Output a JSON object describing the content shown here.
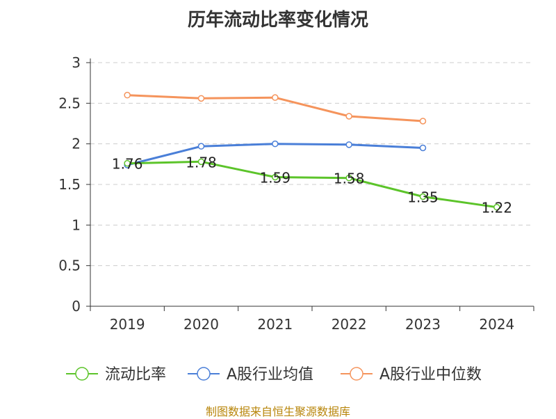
{
  "chart_data": {
    "type": "line",
    "title": "历年流动比率变化情况",
    "categories": [
      "2019",
      "2020",
      "2021",
      "2022",
      "2023",
      "2024"
    ],
    "y_ticks": [
      "0",
      "0.5",
      "1",
      "1.5",
      "2",
      "2.5",
      "3"
    ],
    "ylim": [
      0,
      3
    ],
    "grid": true,
    "legend_position": "bottom",
    "series": [
      {
        "name": "流动比率",
        "color": "#5cc42a",
        "values": [
          1.76,
          1.78,
          1.59,
          1.58,
          1.35,
          1.22
        ],
        "labels": [
          "1.76",
          "1.78",
          "1.59",
          "1.58",
          "1.35",
          "1.22"
        ]
      },
      {
        "name": "A股行业均值",
        "color": "#4a7fd8",
        "values": [
          1.74,
          1.97,
          2.0,
          1.99,
          1.95,
          null
        ]
      },
      {
        "name": "A股行业中位数",
        "color": "#f5945c",
        "values": [
          2.6,
          2.56,
          2.57,
          2.34,
          2.28,
          null
        ]
      }
    ]
  },
  "footer": {
    "source": "制图数据来自恒生聚源数据库"
  }
}
